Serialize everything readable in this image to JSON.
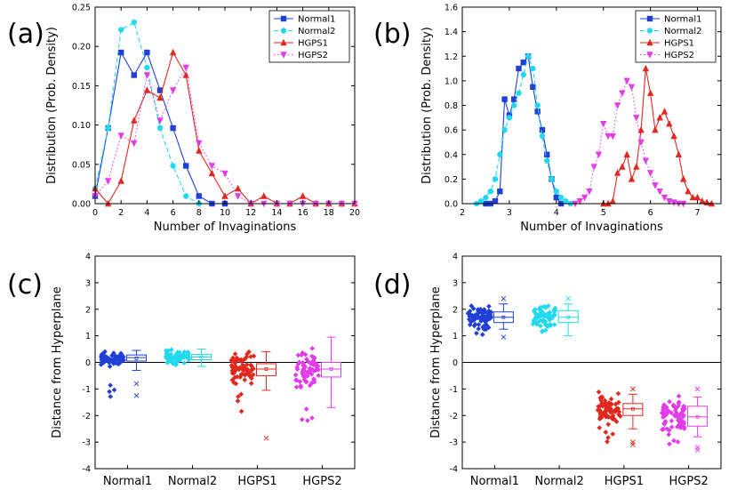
{
  "colors": {
    "normal1": "#1f3fd6",
    "normal2": "#22d8ee",
    "hgps1": "#e0281e",
    "hgps2": "#e23ce8",
    "axis": "#000000"
  },
  "chart_data": [
    {
      "panel_label": "(a)",
      "type": "line",
      "xlabel": "Number of Invaginations",
      "ylabel": "Distribution (Prob. Density)",
      "xlim": [
        0,
        20
      ],
      "ylim": [
        0,
        0.26
      ],
      "xticks": [
        "0",
        "2",
        "4",
        "6",
        "8",
        "10",
        "12",
        "14",
        "16",
        "18",
        "20"
      ],
      "yticks": [
        "0.00",
        "0.05",
        "0.10",
        "0.15",
        "0.20",
        "0.25"
      ],
      "legend_position": "top-right",
      "series": [
        {
          "name": "Normal1",
          "style": "solid",
          "marker": "square",
          "x": [
            0,
            1,
            2,
            3,
            4,
            5,
            6,
            7,
            8,
            9,
            10
          ],
          "y": [
            0.01,
            0.1,
            0.2,
            0.17,
            0.2,
            0.15,
            0.1,
            0.05,
            0.01,
            0,
            0
          ]
        },
        {
          "name": "Normal2",
          "style": "dashed",
          "marker": "circle",
          "x": [
            0,
            1,
            2,
            3,
            4,
            5,
            6,
            7,
            8
          ],
          "y": [
            0.02,
            0.1,
            0.23,
            0.24,
            0.18,
            0.1,
            0.05,
            0.01,
            0
          ]
        },
        {
          "name": "HGPS1",
          "style": "solid",
          "marker": "triangle-up",
          "x": [
            0,
            1,
            2,
            3,
            4,
            5,
            6,
            7,
            8,
            9,
            10,
            11,
            12,
            13,
            14,
            15,
            16,
            17,
            18,
            19,
            20
          ],
          "y": [
            0.02,
            0,
            0.03,
            0.11,
            0.15,
            0.14,
            0.2,
            0.17,
            0.07,
            0.04,
            0.01,
            0.02,
            0,
            0.01,
            0,
            0,
            0.01,
            0,
            0,
            0,
            0
          ]
        },
        {
          "name": "HGPS2",
          "style": "dotted",
          "marker": "triangle-down",
          "x": [
            0,
            1,
            2,
            3,
            4,
            5,
            6,
            7,
            8,
            9,
            10,
            11,
            12,
            13,
            14,
            15,
            16,
            17,
            18,
            19,
            20
          ],
          "y": [
            0.01,
            0.03,
            0.09,
            0.08,
            0.17,
            0.11,
            0.15,
            0.18,
            0.08,
            0.05,
            0.04,
            0.01,
            0,
            0,
            0,
            0,
            0,
            0,
            0,
            0,
            0
          ]
        }
      ]
    },
    {
      "panel_label": "(b)",
      "type": "line",
      "xlabel": "Number of Invaginations",
      "ylabel": "Distribution (Prob. Density)",
      "xlim": [
        2,
        7.5
      ],
      "ylim": [
        0,
        1.6
      ],
      "xticks": [
        "2",
        "3",
        "4",
        "5",
        "6",
        "7"
      ],
      "yticks": [
        "0.0",
        "0.2",
        "0.4",
        "0.6",
        "0.8",
        "1.0",
        "1.2",
        "1.4",
        "1.6"
      ],
      "legend_position": "top-right",
      "series": [
        {
          "name": "Normal1",
          "style": "solid",
          "marker": "square",
          "x": [
            2.5,
            2.6,
            2.7,
            2.8,
            2.9,
            3.0,
            3.1,
            3.2,
            3.3,
            3.4,
            3.5,
            3.6,
            3.7,
            3.8,
            3.9,
            4.0,
            4.1
          ],
          "y": [
            0,
            0,
            0.02,
            0.1,
            0.85,
            0.72,
            0.85,
            1.1,
            1.15,
            1.2,
            0.95,
            0.75,
            0.6,
            0.4,
            0.2,
            0.05,
            0
          ]
        },
        {
          "name": "Normal2",
          "style": "dashed",
          "marker": "circle",
          "x": [
            2.3,
            2.4,
            2.5,
            2.6,
            2.7,
            2.8,
            2.9,
            3.0,
            3.1,
            3.2,
            3.3,
            3.4,
            3.5,
            3.6,
            3.7,
            3.8,
            3.9,
            4.0,
            4.1,
            4.2,
            4.3
          ],
          "y": [
            0,
            0.02,
            0.05,
            0.1,
            0.2,
            0.4,
            0.6,
            0.7,
            0.8,
            0.9,
            1.05,
            1.2,
            1.1,
            0.8,
            0.55,
            0.35,
            0.2,
            0.1,
            0.05,
            0.02,
            0
          ]
        },
        {
          "name": "HGPS1",
          "style": "solid",
          "marker": "triangle-up",
          "x": [
            5.0,
            5.1,
            5.2,
            5.3,
            5.4,
            5.5,
            5.6,
            5.7,
            5.8,
            5.9,
            6.0,
            6.1,
            6.2,
            6.3,
            6.4,
            6.5,
            6.6,
            6.7,
            6.8,
            6.9,
            7.0,
            7.1,
            7.2,
            7.3
          ],
          "y": [
            0,
            0,
            0.02,
            0.25,
            0.3,
            0.4,
            0.2,
            0.3,
            0.6,
            1.1,
            0.9,
            0.6,
            0.7,
            0.75,
            0.65,
            0.55,
            0.4,
            0.2,
            0.1,
            0.05,
            0.05,
            0.02,
            0.01,
            0
          ]
        },
        {
          "name": "HGPS2",
          "style": "dotted",
          "marker": "triangle-down",
          "x": [
            4.4,
            4.5,
            4.6,
            4.7,
            4.8,
            4.9,
            5.0,
            5.1,
            5.2,
            5.3,
            5.4,
            5.5,
            5.6,
            5.7,
            5.8,
            5.9,
            6.0,
            6.1,
            6.2,
            6.3,
            6.4,
            6.5,
            6.6,
            6.7
          ],
          "y": [
            0,
            0.02,
            0.05,
            0.1,
            0.3,
            0.4,
            0.65,
            0.55,
            0.55,
            0.8,
            0.9,
            1.0,
            0.95,
            0.7,
            0.5,
            0.35,
            0.25,
            0.15,
            0.1,
            0.05,
            0.02,
            0.01,
            0,
            0
          ]
        }
      ]
    },
    {
      "panel_label": "(c)",
      "type": "box",
      "ylabel": "Distance from Hyperplane",
      "ylim": [
        -4,
        4
      ],
      "yticks": [
        "-4",
        "-3",
        "-2",
        "-1",
        "0",
        "1",
        "2",
        "3",
        "4"
      ],
      "categories": [
        "Normal1",
        "Normal2",
        "HGPS1",
        "HGPS2"
      ],
      "groups": [
        {
          "name": "Normal1",
          "center": 0.15,
          "spread": 0.15,
          "min": -1.3,
          "max": 0.5,
          "whisker_low": -0.3,
          "whisker_high": 0.45,
          "q1": 0.05,
          "median": 0.18,
          "q3": 0.28,
          "mean": 0.15,
          "outliers": [
            -0.8,
            -1.25
          ]
        },
        {
          "name": "Normal2",
          "center": 0.2,
          "spread": 0.12,
          "min": -0.1,
          "max": 0.55,
          "whisker_low": -0.15,
          "whisker_high": 0.5,
          "q1": 0.1,
          "median": 0.2,
          "q3": 0.3,
          "mean": 0.2,
          "outliers": []
        },
        {
          "name": "HGPS1",
          "center": -0.25,
          "spread": 0.35,
          "min": -2.1,
          "max": 0.5,
          "whisker_low": -1.05,
          "whisker_high": 0.4,
          "q1": -0.5,
          "median": -0.25,
          "q3": -0.05,
          "mean": -0.25,
          "outliers": [
            -2.85
          ]
        },
        {
          "name": "HGPS2",
          "center": -0.25,
          "spread": 0.4,
          "min": -2.5,
          "max": 0.6,
          "whisker_low": -1.7,
          "whisker_high": 0.95,
          "q1": -0.55,
          "median": -0.25,
          "q3": 0.0,
          "mean": -0.25,
          "outliers": []
        }
      ]
    },
    {
      "panel_label": "(d)",
      "type": "box",
      "ylabel": "Distance from Hyperplane",
      "ylim": [
        -4,
        4
      ],
      "yticks": [
        "-4",
        "-3",
        "-2",
        "-1",
        "0",
        "1",
        "2",
        "3",
        "4"
      ],
      "categories": [
        "Normal1",
        "Normal2",
        "HGPS1",
        "HGPS2"
      ],
      "groups": [
        {
          "name": "Normal1",
          "center": 1.7,
          "spread": 0.25,
          "min": 1.0,
          "max": 2.4,
          "whisker_low": 1.25,
          "whisker_high": 2.2,
          "q1": 1.5,
          "median": 1.7,
          "q3": 1.9,
          "mean": 1.7,
          "outliers": [
            0.95,
            2.4
          ]
        },
        {
          "name": "Normal2",
          "center": 1.7,
          "spread": 0.25,
          "min": 1.1,
          "max": 2.4,
          "whisker_low": 1.0,
          "whisker_high": 2.2,
          "q1": 1.5,
          "median": 1.7,
          "q3": 1.95,
          "mean": 1.7,
          "outliers": [
            2.4
          ]
        },
        {
          "name": "HGPS1",
          "center": -1.8,
          "spread": 0.35,
          "min": -3.0,
          "max": -1.0,
          "whisker_low": -2.5,
          "whisker_high": -1.2,
          "q1": -2.0,
          "median": -1.75,
          "q3": -1.55,
          "mean": -1.75,
          "outliers": [
            -1.0,
            -3.0,
            -3.1
          ]
        },
        {
          "name": "HGPS2",
          "center": -2.0,
          "spread": 0.4,
          "min": -3.1,
          "max": -1.0,
          "whisker_low": -2.8,
          "whisker_high": -1.3,
          "q1": -2.4,
          "median": -2.05,
          "q3": -1.65,
          "mean": -2.05,
          "outliers": [
            -1.0,
            -3.2,
            -3.3
          ]
        }
      ]
    }
  ]
}
